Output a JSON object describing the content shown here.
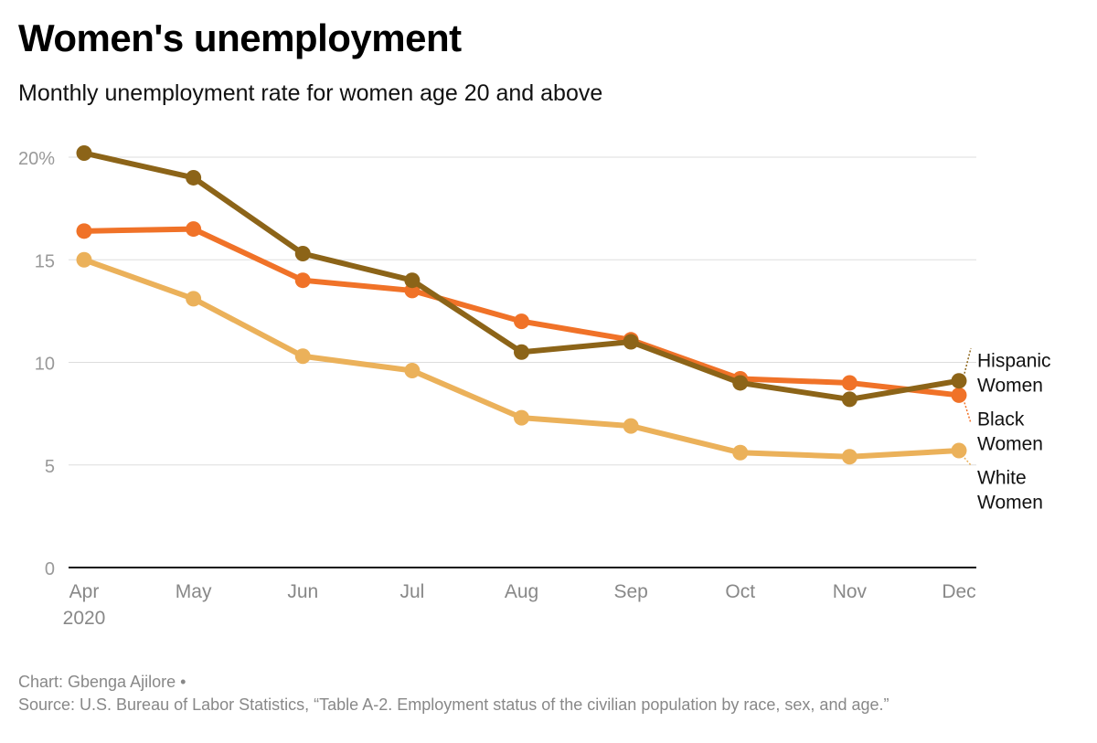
{
  "title": "Women's unemployment",
  "subtitle": "Monthly unemployment rate for women age 20 and above",
  "credit": "Chart: Gbenga Ajilore •",
  "source": "Source: U.S. Bureau of Labor Statistics, “Table A-2. Employment status of the civilian population by race, sex, and age.”",
  "chart_data": {
    "type": "line",
    "categories": [
      "Apr",
      "May",
      "Jun",
      "Jul",
      "Aug",
      "Sep",
      "Oct",
      "Nov",
      "Dec"
    ],
    "year_label": "2020",
    "y_ticks": [
      0,
      5,
      10,
      15,
      20
    ],
    "y_tick_labels": [
      "0",
      "5",
      "10",
      "15",
      "20%"
    ],
    "ylim": [
      0,
      20
    ],
    "grid": true,
    "series": [
      {
        "name": "White Women",
        "label_lines": [
          "White",
          "Women"
        ],
        "color": "#ebb15a",
        "values": [
          15.0,
          13.1,
          10.3,
          9.6,
          7.3,
          6.9,
          5.6,
          5.4,
          5.7
        ]
      },
      {
        "name": "Black Women",
        "label_lines": [
          "Black",
          "Women"
        ],
        "color": "#f07228",
        "values": [
          16.4,
          16.5,
          14.0,
          13.5,
          12.0,
          11.1,
          9.2,
          9.0,
          8.4
        ]
      },
      {
        "name": "Hispanic Women",
        "label_lines": [
          "Hispanic",
          "Women"
        ],
        "color": "#8c6418",
        "values": [
          20.2,
          19.0,
          15.3,
          14.0,
          10.5,
          11.0,
          9.0,
          8.2,
          9.1
        ]
      }
    ]
  }
}
